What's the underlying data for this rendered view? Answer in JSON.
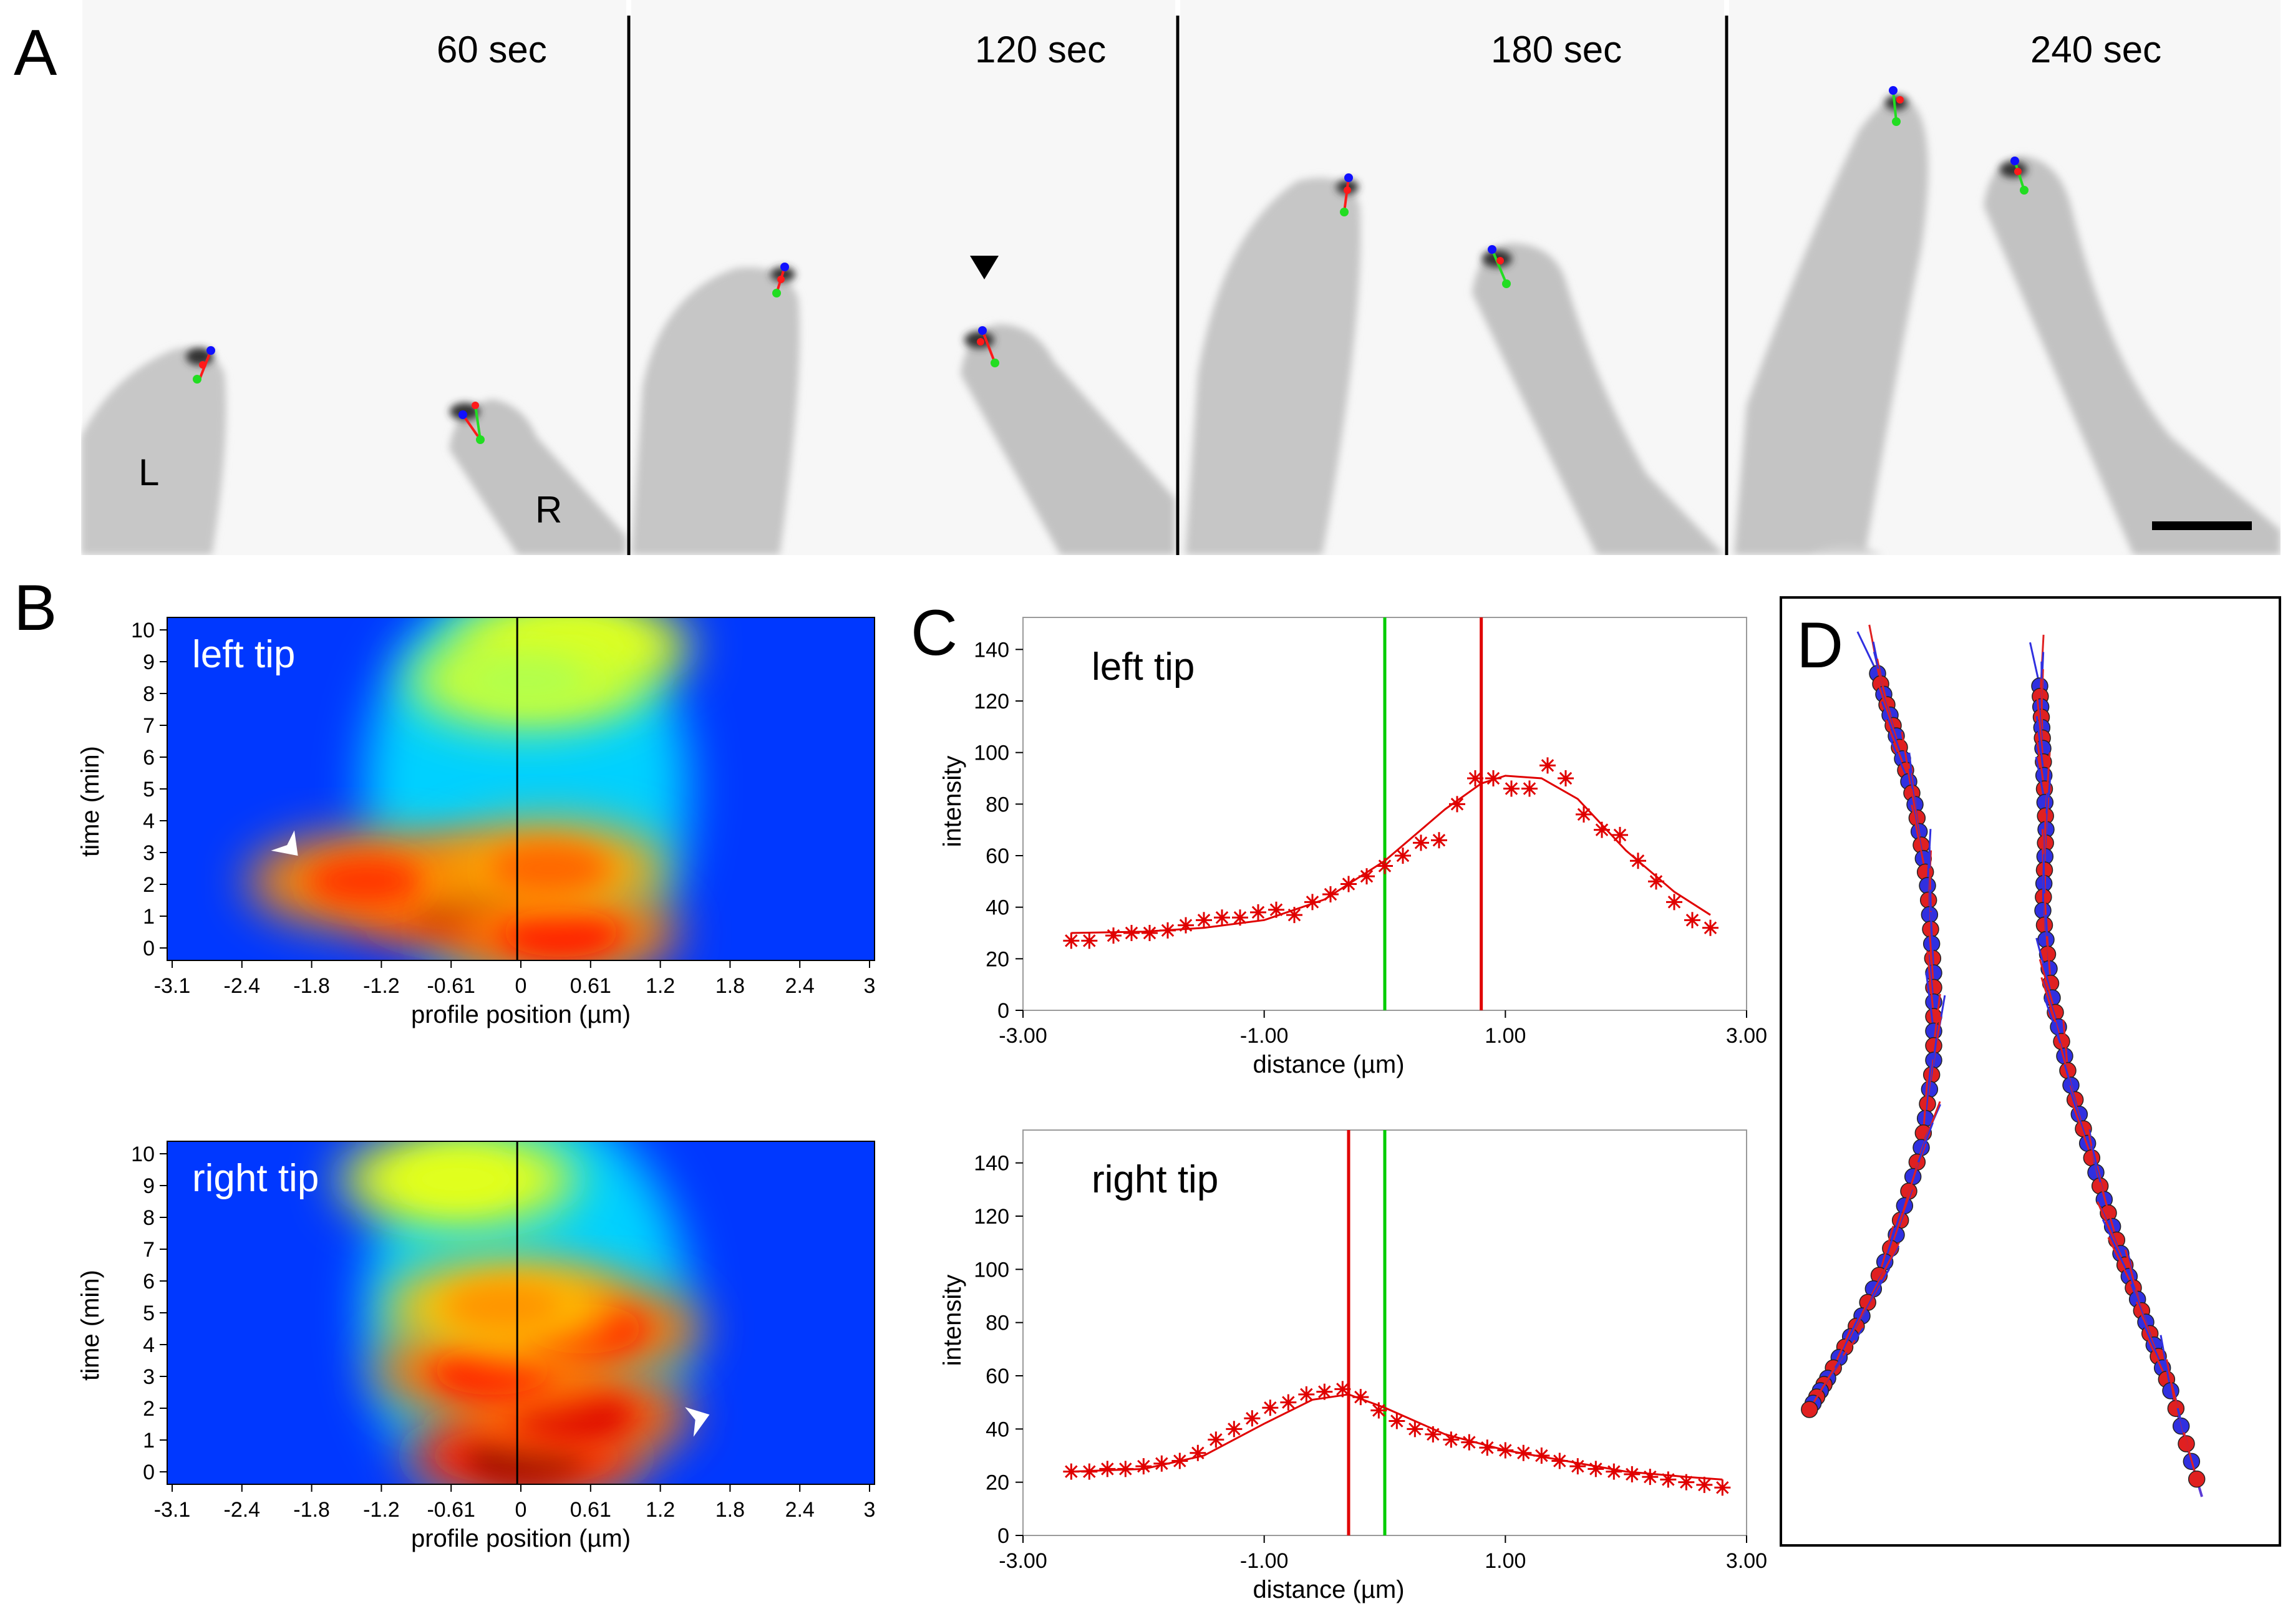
{
  "figure": {
    "panel_labels": {
      "a": "A",
      "b": "B",
      "c": "C",
      "d": "D"
    },
    "panel_a": {
      "frames": [
        "60 sec",
        "120 sec",
        "180 sec",
        "240 sec"
      ],
      "cell_labels": {
        "left": "L",
        "right": "R"
      },
      "colors": {
        "blue": "#1010ff",
        "red": "#ff1a1a",
        "green": "#22dd22"
      }
    }
  },
  "chart_data": [
    {
      "type": "heatmap",
      "id": "B-left",
      "title": "left tip",
      "xlabel": "profile position (µm)",
      "ylabel": "time (min)",
      "x_ticks": [
        "-3.1",
        "-2.4",
        "-1.8",
        "-1.2",
        "-0.61",
        "0",
        "0.61",
        "1.2",
        "1.8",
        "2.4",
        "3"
      ],
      "y_ticks": [
        "0",
        "1",
        "2",
        "3",
        "4",
        "5",
        "6",
        "7",
        "8",
        "9",
        "10"
      ],
      "xlim": [
        -3.1,
        3
      ],
      "ylim": [
        0,
        10
      ],
      "colormap": "jet",
      "hotspots": [
        {
          "x": -0.5,
          "t": 1.5,
          "level": 1.0
        },
        {
          "x": -1.4,
          "t": 2.1,
          "level": 0.8
        },
        {
          "x": 0.3,
          "t": 0.5,
          "level": 0.85
        },
        {
          "x": 0.2,
          "t": 2.5,
          "level": 0.75
        },
        {
          "x": 0.4,
          "t": 9.5,
          "level": 0.55
        },
        {
          "x": 0.0,
          "t": 8.4,
          "level": 0.5
        }
      ],
      "arrowhead": {
        "x": -2.0,
        "t": 2.9
      }
    },
    {
      "type": "heatmap",
      "id": "B-right",
      "title": "right tip",
      "xlabel": "profile position (µm)",
      "ylabel": "time (min)",
      "x_ticks": [
        "-3.1",
        "-2.4",
        "-1.8",
        "-1.2",
        "-0.61",
        "0",
        "0.61",
        "1.2",
        "1.8",
        "2.4",
        "3"
      ],
      "y_ticks": [
        "0",
        "1",
        "2",
        "3",
        "4",
        "5",
        "6",
        "7",
        "8",
        "9",
        "10"
      ],
      "xlim": [
        -3.1,
        3
      ],
      "ylim": [
        0,
        10
      ],
      "colormap": "jet",
      "hotspots": [
        {
          "x": 0.0,
          "t": 0.5,
          "level": 1.0
        },
        {
          "x": 0.4,
          "t": 1.8,
          "level": 0.9
        },
        {
          "x": -0.3,
          "t": 3.2,
          "level": 0.85
        },
        {
          "x": 0.5,
          "t": 4.5,
          "level": 0.85
        },
        {
          "x": -0.2,
          "t": 5.2,
          "level": 0.7
        },
        {
          "x": -0.6,
          "t": 9.2,
          "level": 0.55
        }
      ],
      "arrowhead": {
        "x": 1.6,
        "t": 1.8
      }
    },
    {
      "type": "line",
      "id": "C-left",
      "title": "left tip",
      "xlabel": "distance (µm)",
      "ylabel": "intensity",
      "x_ticks": [
        "-3.00",
        "-1.00",
        "1.00",
        "3.00"
      ],
      "y_ticks": [
        "0",
        "20",
        "40",
        "60",
        "80",
        "100",
        "120",
        "140"
      ],
      "xlim": [
        -3,
        3
      ],
      "ylim": [
        0,
        150
      ],
      "markers_x": [
        -2.6,
        -2.45,
        -2.25,
        -2.1,
        -1.95,
        -1.8,
        -1.65,
        -1.5,
        -1.35,
        -1.2,
        -1.05,
        -0.9,
        -0.75,
        -0.6,
        -0.45,
        -0.3,
        -0.15,
        0,
        0.15,
        0.3,
        0.45,
        0.6,
        0.75,
        0.9,
        1.05,
        1.2,
        1.35,
        1.5,
        1.65,
        1.8,
        1.95,
        2.1,
        2.25,
        2.4,
        2.55,
        2.7
      ],
      "markers_y": [
        27,
        27,
        29,
        30,
        30,
        31,
        33,
        35,
        36,
        36,
        38,
        39,
        37,
        42,
        45,
        49,
        52,
        56,
        60,
        65,
        66,
        80,
        90,
        90,
        86,
        86,
        95,
        90,
        76,
        70,
        68,
        58,
        50,
        42,
        35,
        32
      ],
      "fit_x": [
        -2.6,
        -2.0,
        -1.5,
        -1.0,
        -0.5,
        0.0,
        0.5,
        0.8,
        1.0,
        1.3,
        1.6,
        2.0,
        2.4,
        2.7
      ],
      "fit_y": [
        30,
        30.5,
        32,
        35,
        43,
        58,
        78,
        88,
        91,
        90,
        82,
        62,
        46,
        37
      ],
      "vlines": [
        {
          "x": 0.0,
          "color": "#00cc00"
        },
        {
          "x": 0.8,
          "color": "#e00000"
        }
      ],
      "color": "#e00000"
    },
    {
      "type": "line",
      "id": "C-right",
      "title": "right tip",
      "xlabel": "distance (µm)",
      "ylabel": "intensity",
      "x_ticks": [
        "-3.00",
        "-1.00",
        "1.00",
        "3.00"
      ],
      "y_ticks": [
        "0",
        "20",
        "40",
        "60",
        "80",
        "100",
        "120",
        "140"
      ],
      "xlim": [
        -3,
        3
      ],
      "ylim": [
        0,
        150
      ],
      "markers_x": [
        -2.6,
        -2.45,
        -2.3,
        -2.15,
        -2.0,
        -1.85,
        -1.7,
        -1.55,
        -1.4,
        -1.25,
        -1.1,
        -0.95,
        -0.8,
        -0.65,
        -0.5,
        -0.35,
        -0.2,
        -0.05,
        0.1,
        0.25,
        0.4,
        0.55,
        0.7,
        0.85,
        1.0,
        1.15,
        1.3,
        1.45,
        1.6,
        1.75,
        1.9,
        2.05,
        2.2,
        2.35,
        2.5,
        2.65,
        2.8
      ],
      "markers_y": [
        24,
        24,
        25,
        25,
        26,
        27,
        28,
        31,
        36,
        40,
        44,
        48,
        50,
        53,
        54,
        55,
        52,
        47,
        43,
        40,
        38,
        36,
        35,
        33,
        32,
        31,
        30,
        28,
        26,
        25,
        24,
        23,
        22,
        21,
        20,
        19,
        18
      ],
      "fit_x": [
        -2.6,
        -2.0,
        -1.5,
        -1.0,
        -0.6,
        -0.3,
        0.0,
        0.5,
        1.0,
        1.5,
        2.0,
        2.5,
        2.8
      ],
      "fit_y": [
        24,
        25,
        30,
        42,
        51,
        53,
        48,
        38,
        32,
        28,
        24,
        22,
        21
      ],
      "vlines": [
        {
          "x": -0.3,
          "color": "#e00000"
        },
        {
          "x": 0.0,
          "color": "#00cc00"
        }
      ],
      "color": "#e00000"
    },
    {
      "type": "scatter",
      "id": "D",
      "title": "",
      "description_series": [
        {
          "name": "left track",
          "color_points": "#3030e0",
          "color_alt": "#e02020"
        },
        {
          "name": "right track",
          "color_points": "#3030e0",
          "color_alt": "#e02020"
        }
      ]
    }
  ]
}
